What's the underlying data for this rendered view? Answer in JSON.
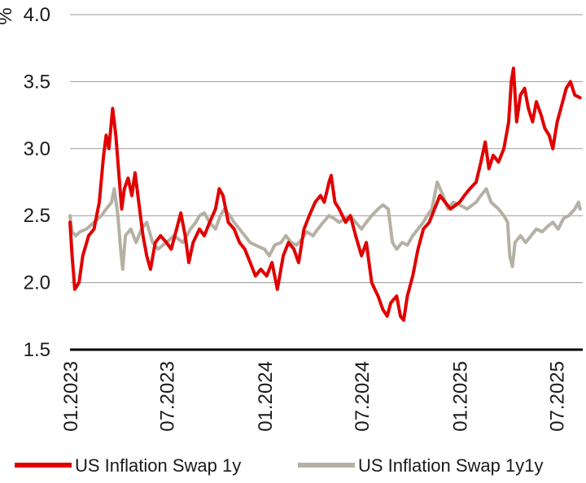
{
  "chart_data": {
    "type": "line",
    "ylabel": "%",
    "ylim": [
      1.5,
      4.0
    ],
    "yticks": [
      "1.5",
      "2.0",
      "2.5",
      "3.0",
      "3.5",
      "4.0"
    ],
    "xlim": [
      "2023-01-01",
      "2025-08-20"
    ],
    "xticks": [
      {
        "date": "2023-01-01",
        "label": "01.2023"
      },
      {
        "date": "2023-07-01",
        "label": "07.2023"
      },
      {
        "date": "2024-01-01",
        "label": "01.2024"
      },
      {
        "date": "2024-07-01",
        "label": "07.2024"
      },
      {
        "date": "2025-01-01",
        "label": "01.2025"
      },
      {
        "date": "2025-07-01",
        "label": "07.2025"
      }
    ],
    "grid": "horizontal",
    "legend": "bottom",
    "series": [
      {
        "name": "US Inflation Swap 1y",
        "color": "#e00000",
        "points": [
          [
            "2023-01-01",
            2.45
          ],
          [
            "2023-01-05",
            2.2
          ],
          [
            "2023-01-10",
            1.95
          ],
          [
            "2023-01-18",
            2.0
          ],
          [
            "2023-01-25",
            2.2
          ],
          [
            "2023-02-05",
            2.35
          ],
          [
            "2023-02-15",
            2.4
          ],
          [
            "2023-02-25",
            2.6
          ],
          [
            "2023-03-05",
            2.95
          ],
          [
            "2023-03-10",
            3.1
          ],
          [
            "2023-03-15",
            3.0
          ],
          [
            "2023-03-22",
            3.3
          ],
          [
            "2023-03-28",
            3.1
          ],
          [
            "2023-04-03",
            2.8
          ],
          [
            "2023-04-08",
            2.55
          ],
          [
            "2023-04-13",
            2.7
          ],
          [
            "2023-04-20",
            2.78
          ],
          [
            "2023-04-27",
            2.65
          ],
          [
            "2023-05-03",
            2.82
          ],
          [
            "2023-05-10",
            2.6
          ],
          [
            "2023-05-18",
            2.35
          ],
          [
            "2023-05-25",
            2.2
          ],
          [
            "2023-06-01",
            2.1
          ],
          [
            "2023-06-10",
            2.3
          ],
          [
            "2023-06-20",
            2.35
          ],
          [
            "2023-07-01",
            2.3
          ],
          [
            "2023-07-10",
            2.25
          ],
          [
            "2023-07-20",
            2.4
          ],
          [
            "2023-07-28",
            2.52
          ],
          [
            "2023-08-05",
            2.35
          ],
          [
            "2023-08-12",
            2.15
          ],
          [
            "2023-08-20",
            2.3
          ],
          [
            "2023-09-01",
            2.4
          ],
          [
            "2023-09-10",
            2.35
          ],
          [
            "2023-09-20",
            2.45
          ],
          [
            "2023-10-01",
            2.55
          ],
          [
            "2023-10-08",
            2.7
          ],
          [
            "2023-10-15",
            2.65
          ],
          [
            "2023-10-25",
            2.45
          ],
          [
            "2023-11-05",
            2.4
          ],
          [
            "2023-11-15",
            2.3
          ],
          [
            "2023-11-25",
            2.25
          ],
          [
            "2023-12-05",
            2.15
          ],
          [
            "2023-12-15",
            2.05
          ],
          [
            "2023-12-25",
            2.1
          ],
          [
            "2024-01-05",
            2.05
          ],
          [
            "2024-01-15",
            2.15
          ],
          [
            "2024-01-25",
            1.95
          ],
          [
            "2024-02-05",
            2.2
          ],
          [
            "2024-02-15",
            2.3
          ],
          [
            "2024-02-25",
            2.25
          ],
          [
            "2024-03-05",
            2.15
          ],
          [
            "2024-03-15",
            2.4
          ],
          [
            "2024-03-25",
            2.5
          ],
          [
            "2024-04-05",
            2.6
          ],
          [
            "2024-04-15",
            2.65
          ],
          [
            "2024-04-22",
            2.6
          ],
          [
            "2024-05-01",
            2.75
          ],
          [
            "2024-05-05",
            2.8
          ],
          [
            "2024-05-12",
            2.6
          ],
          [
            "2024-05-20",
            2.55
          ],
          [
            "2024-06-01",
            2.45
          ],
          [
            "2024-06-10",
            2.5
          ],
          [
            "2024-06-20",
            2.35
          ],
          [
            "2024-07-01",
            2.2
          ],
          [
            "2024-07-10",
            2.3
          ],
          [
            "2024-07-20",
            2.0
          ],
          [
            "2024-08-01",
            1.9
          ],
          [
            "2024-08-10",
            1.8
          ],
          [
            "2024-08-18",
            1.75
          ],
          [
            "2024-08-25",
            1.85
          ],
          [
            "2024-09-05",
            1.9
          ],
          [
            "2024-09-12",
            1.75
          ],
          [
            "2024-09-18",
            1.72
          ],
          [
            "2024-09-25",
            1.9
          ],
          [
            "2024-10-05",
            2.05
          ],
          [
            "2024-10-15",
            2.25
          ],
          [
            "2024-10-25",
            2.4
          ],
          [
            "2024-11-05",
            2.45
          ],
          [
            "2024-11-15",
            2.55
          ],
          [
            "2024-11-25",
            2.65
          ],
          [
            "2024-12-05",
            2.6
          ],
          [
            "2024-12-15",
            2.55
          ],
          [
            "2025-01-01",
            2.6
          ],
          [
            "2025-01-10",
            2.65
          ],
          [
            "2025-01-20",
            2.7
          ],
          [
            "2025-02-01",
            2.75
          ],
          [
            "2025-02-10",
            2.9
          ],
          [
            "2025-02-18",
            3.05
          ],
          [
            "2025-02-25",
            2.85
          ],
          [
            "2025-03-05",
            2.95
          ],
          [
            "2025-03-15",
            2.9
          ],
          [
            "2025-03-25",
            3.0
          ],
          [
            "2025-04-03",
            3.2
          ],
          [
            "2025-04-08",
            3.5
          ],
          [
            "2025-04-12",
            3.6
          ],
          [
            "2025-04-18",
            3.2
          ],
          [
            "2025-04-25",
            3.4
          ],
          [
            "2025-05-03",
            3.45
          ],
          [
            "2025-05-10",
            3.3
          ],
          [
            "2025-05-18",
            3.2
          ],
          [
            "2025-05-25",
            3.35
          ],
          [
            "2025-06-03",
            3.25
          ],
          [
            "2025-06-10",
            3.15
          ],
          [
            "2025-06-18",
            3.1
          ],
          [
            "2025-06-25",
            3.0
          ],
          [
            "2025-07-03",
            3.2
          ],
          [
            "2025-07-10",
            3.3
          ],
          [
            "2025-07-20",
            3.45
          ],
          [
            "2025-07-28",
            3.5
          ],
          [
            "2025-08-05",
            3.4
          ],
          [
            "2025-08-15",
            3.38
          ]
        ]
      },
      {
        "name": "US Inflation Swap 1y1y",
        "color": "#b5b0a3",
        "points": [
          [
            "2023-01-01",
            2.5
          ],
          [
            "2023-01-05",
            2.38
          ],
          [
            "2023-01-12",
            2.35
          ],
          [
            "2023-01-20",
            2.38
          ],
          [
            "2023-02-01",
            2.4
          ],
          [
            "2023-02-15",
            2.45
          ],
          [
            "2023-03-01",
            2.5
          ],
          [
            "2023-03-10",
            2.55
          ],
          [
            "2023-03-20",
            2.6
          ],
          [
            "2023-03-25",
            2.7
          ],
          [
            "2023-04-01",
            2.5
          ],
          [
            "2023-04-06",
            2.25
          ],
          [
            "2023-04-10",
            2.1
          ],
          [
            "2023-04-15",
            2.35
          ],
          [
            "2023-04-25",
            2.4
          ],
          [
            "2023-05-05",
            2.3
          ],
          [
            "2023-05-15",
            2.4
          ],
          [
            "2023-05-25",
            2.45
          ],
          [
            "2023-06-05",
            2.3
          ],
          [
            "2023-06-15",
            2.25
          ],
          [
            "2023-07-01",
            2.3
          ],
          [
            "2023-07-15",
            2.35
          ],
          [
            "2023-08-01",
            2.3
          ],
          [
            "2023-08-15",
            2.4
          ],
          [
            "2023-08-25",
            2.45
          ],
          [
            "2023-09-01",
            2.5
          ],
          [
            "2023-09-10",
            2.52
          ],
          [
            "2023-09-20",
            2.45
          ],
          [
            "2023-10-01",
            2.4
          ],
          [
            "2023-10-10",
            2.5
          ],
          [
            "2023-10-18",
            2.55
          ],
          [
            "2023-10-28",
            2.5
          ],
          [
            "2023-11-05",
            2.45
          ],
          [
            "2023-11-15",
            2.4
          ],
          [
            "2023-11-25",
            2.35
          ],
          [
            "2023-12-05",
            2.3
          ],
          [
            "2023-12-15",
            2.28
          ],
          [
            "2024-01-01",
            2.25
          ],
          [
            "2024-01-10",
            2.2
          ],
          [
            "2024-01-20",
            2.28
          ],
          [
            "2024-02-01",
            2.3
          ],
          [
            "2024-02-10",
            2.35
          ],
          [
            "2024-02-20",
            2.3
          ],
          [
            "2024-03-01",
            2.28
          ],
          [
            "2024-03-10",
            2.32
          ],
          [
            "2024-03-20",
            2.38
          ],
          [
            "2024-04-01",
            2.35
          ],
          [
            "2024-04-10",
            2.4
          ],
          [
            "2024-04-20",
            2.45
          ],
          [
            "2024-05-01",
            2.5
          ],
          [
            "2024-05-10",
            2.48
          ],
          [
            "2024-05-20",
            2.45
          ],
          [
            "2024-06-01",
            2.48
          ],
          [
            "2024-06-10",
            2.5
          ],
          [
            "2024-06-20",
            2.45
          ],
          [
            "2024-07-01",
            2.4
          ],
          [
            "2024-07-10",
            2.45
          ],
          [
            "2024-07-20",
            2.5
          ],
          [
            "2024-08-01",
            2.55
          ],
          [
            "2024-08-10",
            2.58
          ],
          [
            "2024-08-20",
            2.55
          ],
          [
            "2024-08-28",
            2.3
          ],
          [
            "2024-09-05",
            2.25
          ],
          [
            "2024-09-15",
            2.3
          ],
          [
            "2024-09-25",
            2.28
          ],
          [
            "2024-10-05",
            2.35
          ],
          [
            "2024-10-15",
            2.4
          ],
          [
            "2024-10-25",
            2.45
          ],
          [
            "2024-11-01",
            2.5
          ],
          [
            "2024-11-10",
            2.55
          ],
          [
            "2024-11-20",
            2.75
          ],
          [
            "2024-12-01",
            2.65
          ],
          [
            "2024-12-10",
            2.55
          ],
          [
            "2024-12-20",
            2.6
          ],
          [
            "2025-01-01",
            2.58
          ],
          [
            "2025-01-15",
            2.55
          ],
          [
            "2025-02-01",
            2.6
          ],
          [
            "2025-02-10",
            2.65
          ],
          [
            "2025-02-20",
            2.7
          ],
          [
            "2025-03-01",
            2.6
          ],
          [
            "2025-03-15",
            2.55
          ],
          [
            "2025-03-25",
            2.5
          ],
          [
            "2025-04-01",
            2.45
          ],
          [
            "2025-04-05",
            2.2
          ],
          [
            "2025-04-10",
            2.12
          ],
          [
            "2025-04-15",
            2.3
          ],
          [
            "2025-04-25",
            2.35
          ],
          [
            "2025-05-05",
            2.3
          ],
          [
            "2025-05-15",
            2.35
          ],
          [
            "2025-05-25",
            2.4
          ],
          [
            "2025-06-05",
            2.38
          ],
          [
            "2025-06-15",
            2.42
          ],
          [
            "2025-06-25",
            2.45
          ],
          [
            "2025-07-05",
            2.4
          ],
          [
            "2025-07-15",
            2.48
          ],
          [
            "2025-07-25",
            2.5
          ],
          [
            "2025-08-05",
            2.55
          ],
          [
            "2025-08-12",
            2.6
          ],
          [
            "2025-08-15",
            2.55
          ]
        ]
      }
    ]
  }
}
